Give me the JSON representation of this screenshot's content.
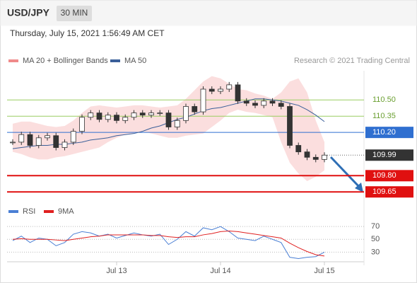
{
  "header": {
    "symbol": "USD/JPY",
    "timeframe": "30 MIN",
    "timestamp": "Thursday, July 15, 2021 1:56:49 AM CET"
  },
  "chart_data": [
    {
      "type": "candlestick",
      "source": "Research © 2021 Trading Central",
      "values": [
        110.11,
        110.18,
        110.08,
        110.15,
        110.17,
        110.06,
        110.11,
        110.21,
        110.34,
        110.38,
        110.32,
        110.36,
        110.31,
        110.34,
        110.38,
        110.36,
        110.38,
        110.38,
        110.25,
        110.31,
        110.44,
        110.39,
        110.6,
        110.58,
        110.6,
        110.64,
        110.49,
        110.47,
        110.45,
        110.49,
        110.47,
        110.44,
        110.08,
        110.02,
        109.97,
        109.95,
        109.99
      ],
      "series": [
        {
          "name": "MA 20 + Bollinger Bands",
          "color": "#f08a8a",
          "upper": [
            110.28,
            110.3,
            110.3,
            110.28,
            110.26,
            110.25,
            110.26,
            110.31,
            110.38,
            110.44,
            110.45,
            110.44,
            110.43,
            110.44,
            110.45,
            110.45,
            110.44,
            110.43,
            110.44,
            110.45,
            110.51,
            110.59,
            110.67,
            110.72,
            110.7,
            110.65,
            110.6,
            110.59,
            110.56,
            110.54,
            110.51,
            110.57,
            110.67,
            110.7,
            110.57,
            110.31,
            110.11
          ],
          "lower": [
            110.02,
            110.0,
            109.97,
            109.95,
            109.95,
            109.97,
            109.98,
            110.0,
            110.02,
            110.04,
            110.06,
            110.11,
            110.15,
            110.18,
            110.19,
            110.21,
            110.19,
            110.17,
            110.15,
            110.15,
            110.17,
            110.18,
            110.19,
            110.25,
            110.31,
            110.38,
            110.41,
            110.39,
            110.38,
            110.36,
            110.34,
            110.11,
            109.92,
            109.82,
            109.75,
            109.79,
            109.85
          ]
        },
        {
          "name": "MA 50",
          "color": "#3a5f99",
          "values": [
            110.05,
            110.06,
            110.07,
            110.08,
            110.08,
            110.09,
            110.09,
            110.1,
            110.11,
            110.13,
            110.14,
            110.15,
            110.17,
            110.18,
            110.19,
            110.21,
            110.24,
            110.26,
            110.29,
            110.32,
            110.34,
            110.37,
            110.4,
            110.42,
            110.43,
            110.45,
            110.47,
            110.49,
            110.51,
            110.51,
            110.5,
            110.49,
            110.47,
            110.45,
            110.41,
            110.36,
            110.3
          ]
        }
      ],
      "ylim": [
        109.56,
        110.77
      ],
      "levels": [
        {
          "value": 110.5,
          "label": "110.50",
          "color": "#9acd60",
          "boxed": false
        },
        {
          "value": 110.35,
          "label": "110.35",
          "color": "#9acd60",
          "boxed": false
        },
        {
          "value": 110.2,
          "label": "110.20",
          "color": "#2f6fd0",
          "boxed": true
        },
        {
          "value": 109.8,
          "label": "109.80",
          "color": "#e01010",
          "boxed": true
        },
        {
          "value": 109.65,
          "label": "109.65",
          "color": "#e01010",
          "boxed": true
        }
      ],
      "last_price": {
        "value": 109.99,
        "label": "109.99",
        "color": "#333333"
      }
    },
    {
      "type": "line",
      "categories": [
        null,
        null,
        null,
        null,
        null,
        null,
        null,
        null,
        null,
        null,
        null,
        null,
        "Jul 13",
        null,
        null,
        null,
        null,
        null,
        null,
        null,
        null,
        null,
        null,
        null,
        "Jul 14",
        null,
        null,
        null,
        null,
        null,
        null,
        null,
        null,
        null,
        null,
        null,
        "Jul 15"
      ],
      "series": [
        {
          "name": "RSI",
          "color": "#4a7fd4",
          "values": [
            48,
            55,
            45,
            52,
            50,
            40,
            45,
            58,
            62,
            60,
            55,
            58,
            52,
            56,
            60,
            57,
            55,
            58,
            42,
            50,
            62,
            55,
            68,
            65,
            70,
            62,
            52,
            50,
            48,
            55,
            50,
            45,
            22,
            20,
            22,
            23,
            30
          ]
        },
        {
          "name": "9MA",
          "color": "#e02020",
          "values": [
            50,
            51,
            50,
            50,
            50,
            49,
            48,
            50,
            52,
            54,
            55,
            57,
            57,
            57,
            57,
            57,
            56,
            56,
            54,
            53,
            54,
            54,
            57,
            59,
            62,
            63,
            62,
            60,
            58,
            56,
            54,
            52,
            44,
            37,
            31,
            26,
            24
          ]
        }
      ],
      "ylim": [
        15,
        79
      ],
      "yticks": [
        70,
        50,
        30
      ]
    }
  ]
}
